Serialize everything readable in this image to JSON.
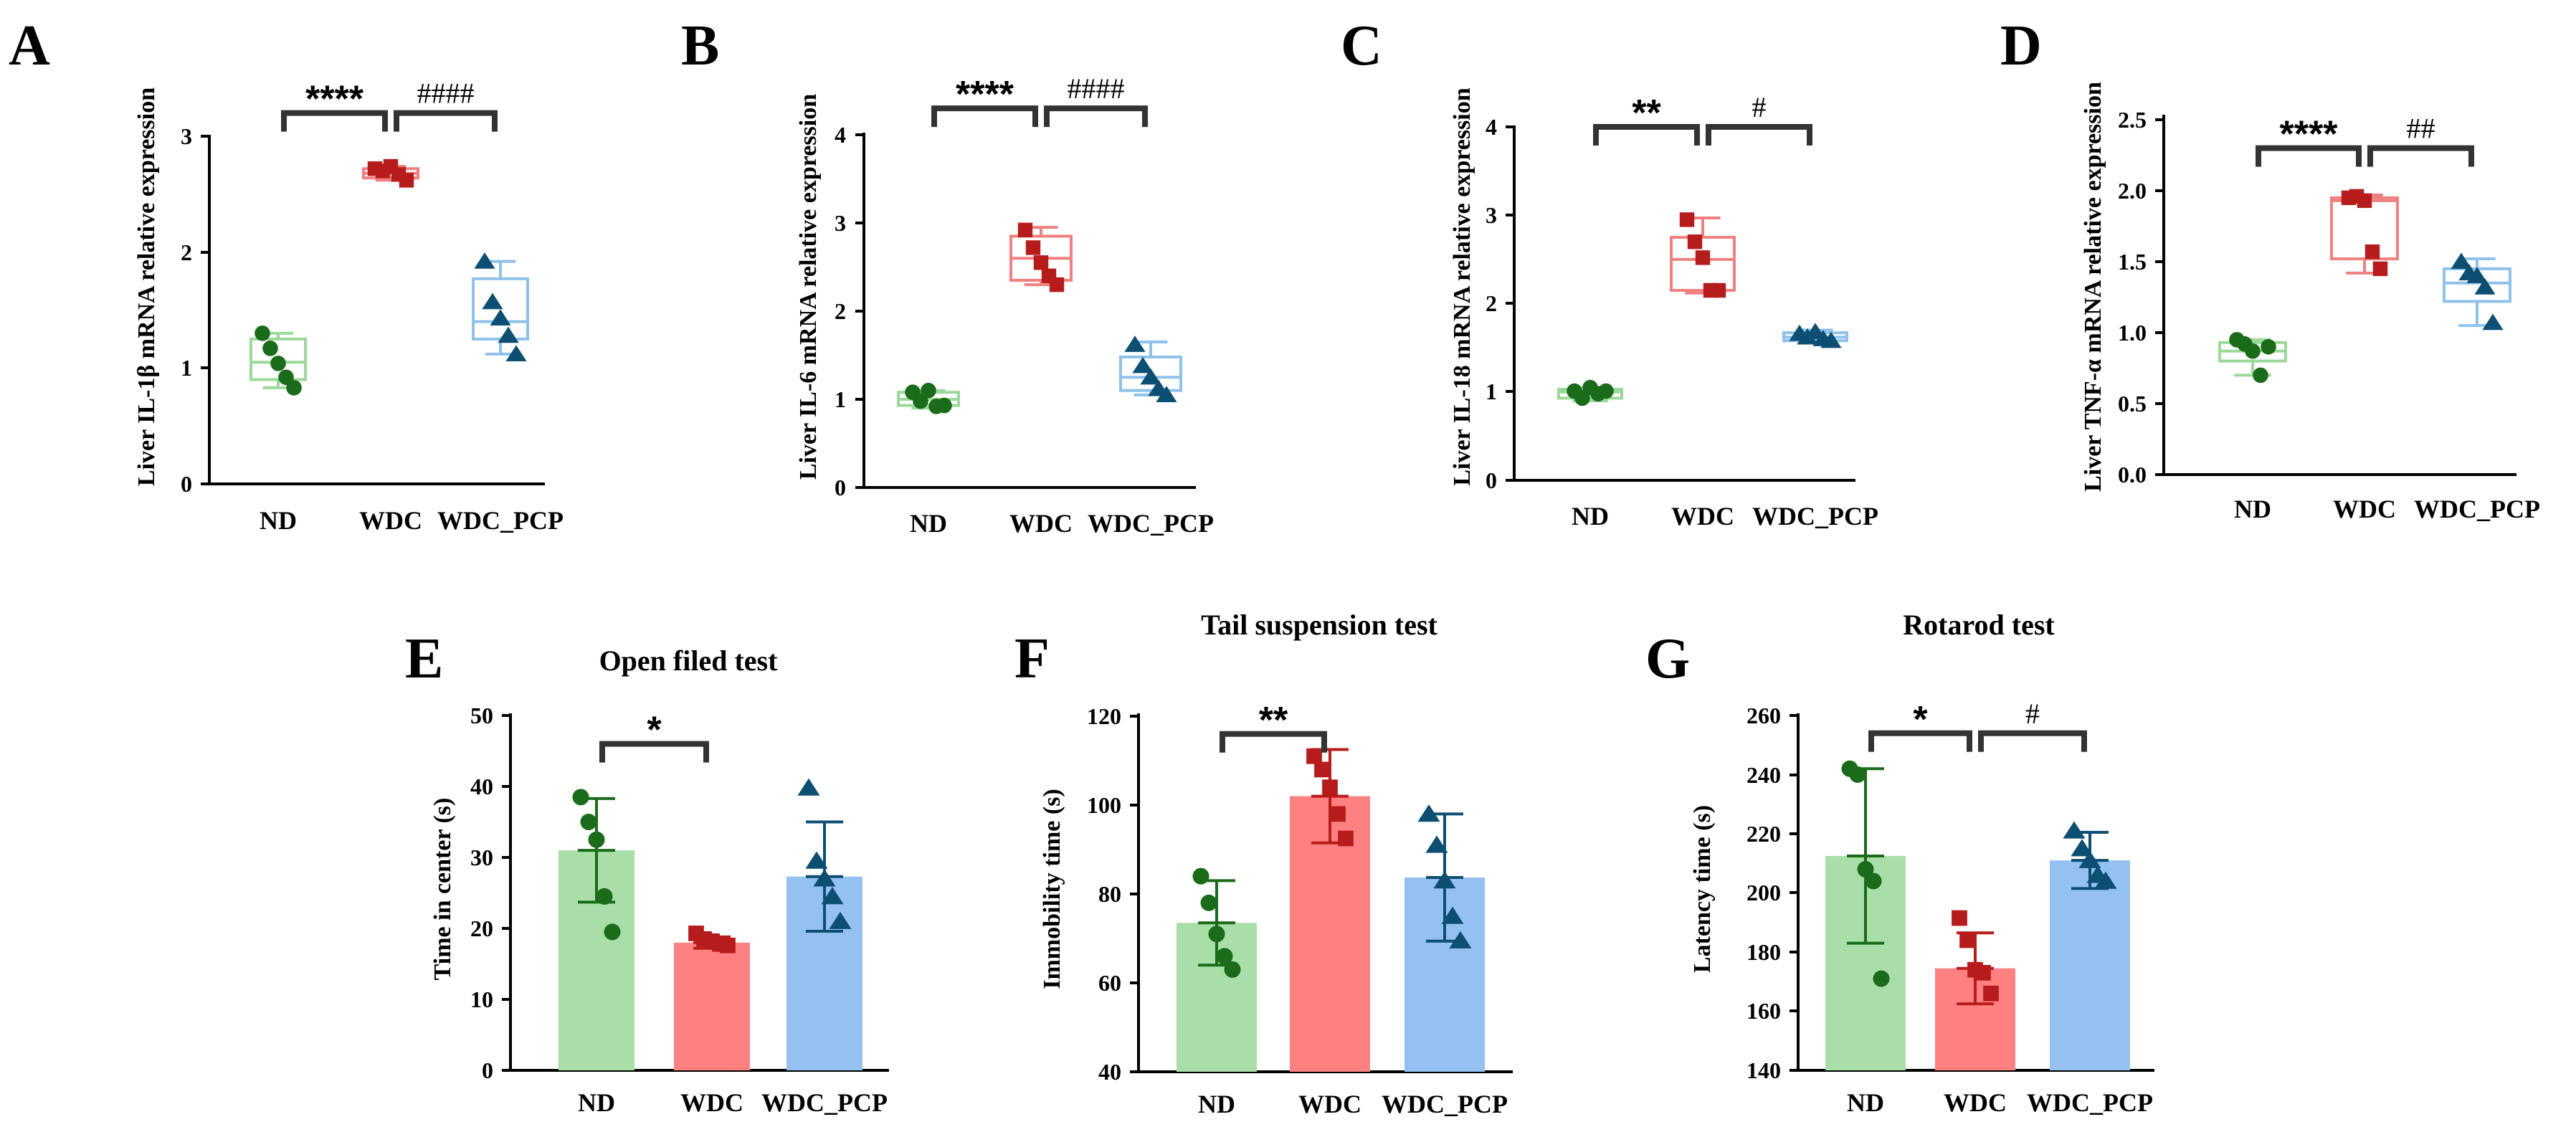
{
  "colors": {
    "ND": "#1a6b1a",
    "WDC": "#b71c1c",
    "WDC_PCP": "#0d4f73",
    "ND_fill": "#a9dea8",
    "WDC_fill": "#ff8080",
    "WDC_PCP_fill": "#94c0f2",
    "ND_box": "#9bd99a",
    "WDC_box": "#f08080",
    "WDC_PCP_box": "#8ec2ea"
  },
  "chart_data": [
    {
      "panel": "A",
      "type": "box",
      "ylabel": "Liver IL-1β mRNA relative expression",
      "categories": [
        "ND",
        "WDC",
        "WDC_PCP"
      ],
      "ylim": [
        0,
        3
      ],
      "yticks": [
        "0",
        "1",
        "2",
        "3"
      ],
      "boxes": [
        {
          "min": 0.83,
          "q1": 0.9,
          "median": 1.05,
          "q3": 1.25,
          "max": 1.3
        },
        {
          "min": 2.62,
          "q1": 2.64,
          "median": 2.68,
          "q3": 2.72,
          "max": 2.74
        },
        {
          "min": 1.12,
          "q1": 1.25,
          "median": 1.4,
          "q3": 1.77,
          "max": 1.92
        }
      ],
      "points": [
        [
          1.3,
          1.17,
          1.04,
          0.92,
          0.83
        ],
        [
          2.72,
          2.7,
          2.74,
          2.67,
          2.62
        ],
        [
          1.92,
          1.57,
          1.43,
          1.28,
          1.12
        ]
      ],
      "sig": [
        {
          "from": 0,
          "to": 1,
          "label": "****",
          "y": 3.2
        },
        {
          "from": 1,
          "to": 2,
          "label": "####",
          "y": 3.2
        }
      ]
    },
    {
      "panel": "B",
      "type": "box",
      "ylabel": "Liver IL-6 mRNA relative expression",
      "categories": [
        "ND",
        "WDC",
        "WDC_PCP"
      ],
      "ylim": [
        0,
        4
      ],
      "yticks": [
        "0",
        "1",
        "2",
        "3",
        "4"
      ],
      "boxes": [
        {
          "min": 0.9,
          "q1": 0.93,
          "median": 1.0,
          "q3": 1.08,
          "max": 1.1
        },
        {
          "min": 2.3,
          "q1": 2.35,
          "median": 2.6,
          "q3": 2.85,
          "max": 2.95
        },
        {
          "min": 1.05,
          "q1": 1.1,
          "median": 1.25,
          "q3": 1.48,
          "max": 1.65
        }
      ],
      "points": [
        [
          1.08,
          0.98,
          1.1,
          0.92,
          0.93
        ],
        [
          2.92,
          2.72,
          2.55,
          2.4,
          2.3
        ],
        [
          1.62,
          1.38,
          1.25,
          1.12,
          1.05
        ]
      ],
      "sig": [
        {
          "from": 0,
          "to": 1,
          "label": "****",
          "y": 4.3
        },
        {
          "from": 1,
          "to": 2,
          "label": "####",
          "y": 4.3
        }
      ]
    },
    {
      "panel": "C",
      "type": "box",
      "ylabel": "Liver IL-18 mRNA relative expression",
      "categories": [
        "ND",
        "WDC",
        "WDC_PCP"
      ],
      "ylim": [
        0,
        4
      ],
      "yticks": [
        "0",
        "1",
        "2",
        "3",
        "4"
      ],
      "boxes": [
        {
          "min": 0.9,
          "q1": 0.93,
          "median": 1.0,
          "q3": 1.03,
          "max": 1.05
        },
        {
          "min": 2.12,
          "q1": 2.15,
          "median": 2.5,
          "q3": 2.75,
          "max": 2.97
        },
        {
          "min": 1.57,
          "q1": 1.58,
          "median": 1.62,
          "q3": 1.67,
          "max": 1.7
        }
      ],
      "points": [
        [
          1.01,
          0.93,
          1.05,
          0.98,
          1.01
        ],
        [
          2.95,
          2.7,
          2.52,
          2.15,
          2.15
        ],
        [
          1.66,
          1.62,
          1.68,
          1.6,
          1.58
        ]
      ],
      "sig": [
        {
          "from": 0,
          "to": 1,
          "label": "**",
          "y": 4.0
        },
        {
          "from": 1,
          "to": 2,
          "label": "#",
          "y": 4.0
        }
      ]
    },
    {
      "panel": "D",
      "type": "box",
      "ylabel": "Liver TNF-α mRNA relative expression",
      "categories": [
        "ND",
        "WDC",
        "WDC_PCP"
      ],
      "ylim": [
        0,
        2.5
      ],
      "yticks": [
        "0.0",
        "0.5",
        "1.0",
        "1.5",
        "2.0",
        "2.5"
      ],
      "boxes": [
        {
          "min": 0.7,
          "q1": 0.8,
          "median": 0.87,
          "q3": 0.93,
          "max": 0.95
        },
        {
          "min": 1.42,
          "q1": 1.52,
          "median": 1.93,
          "q3": 1.95,
          "max": 1.97
        },
        {
          "min": 1.05,
          "q1": 1.22,
          "median": 1.35,
          "q3": 1.45,
          "max": 1.52
        }
      ],
      "points": [
        [
          0.95,
          0.92,
          0.87,
          0.7,
          0.9
        ],
        [
          1.95,
          1.96,
          1.93,
          1.57,
          1.45
        ],
        [
          1.5,
          1.42,
          1.4,
          1.32,
          1.07
        ]
      ],
      "sig": [
        {
          "from": 0,
          "to": 1,
          "label": "****",
          "y": 2.3
        },
        {
          "from": 1,
          "to": 2,
          "label": "##",
          "y": 2.3
        }
      ]
    },
    {
      "panel": "E",
      "type": "bar",
      "title": "Open filed test",
      "ylabel": "Time in center (s)",
      "categories": [
        "ND",
        "WDC",
        "WDC_PCP"
      ],
      "ylim": [
        0,
        50
      ],
      "yticks": [
        "0",
        "10",
        "20",
        "30",
        "40",
        "50"
      ],
      "values": [
        31,
        18,
        27.3
      ],
      "sd": [
        7.3,
        0.8,
        7.7
      ],
      "points": [
        [
          38.5,
          35,
          32.5,
          24.5,
          19.5
        ],
        [
          19.3,
          18.5,
          18.2,
          17.8,
          17.6
        ],
        [
          39.8,
          29.5,
          27,
          24.5,
          21
        ]
      ],
      "sig": [
        {
          "from": 0,
          "to": 1,
          "label": "*",
          "y": 46
        }
      ]
    },
    {
      "panel": "F",
      "type": "bar",
      "title": "Tail suspension test",
      "ylabel": "Immobility time (s)",
      "categories": [
        "ND",
        "WDC",
        "WDC_PCP"
      ],
      "ylim": [
        40,
        120
      ],
      "yticks": [
        "40",
        "60",
        "80",
        "100",
        "120"
      ],
      "values": [
        73.5,
        102,
        83.7
      ],
      "sd": [
        9.5,
        10.5,
        14.3
      ],
      "points": [
        [
          84,
          78,
          71,
          66,
          63
        ],
        [
          111,
          108,
          104,
          98,
          92.5
        ],
        [
          98,
          91,
          83,
          75,
          69.5
        ]
      ],
      "sig": [
        {
          "from": 0,
          "to": 1,
          "label": "**",
          "y": 116
        }
      ]
    },
    {
      "panel": "G",
      "type": "bar",
      "title": "Rotarod test",
      "ylabel": "Latency time (s)",
      "categories": [
        "ND",
        "WDC",
        "WDC_PCP"
      ],
      "ylim": [
        140,
        260
      ],
      "yticks": [
        "140",
        "160",
        "180",
        "200",
        "220",
        "240",
        "260"
      ],
      "values": [
        212.5,
        174.5,
        211
      ],
      "sd": [
        29.5,
        12,
        9.5
      ],
      "points": [
        [
          242,
          240,
          208,
          204,
          171
        ],
        [
          191.5,
          184,
          174,
          173,
          166
        ],
        [
          221,
          215,
          211,
          206,
          204
        ]
      ],
      "sig": [
        {
          "from": 0,
          "to": 1,
          "label": "*",
          "y": 254
        },
        {
          "from": 1,
          "to": 2,
          "label": "#",
          "y": 254
        }
      ]
    }
  ]
}
